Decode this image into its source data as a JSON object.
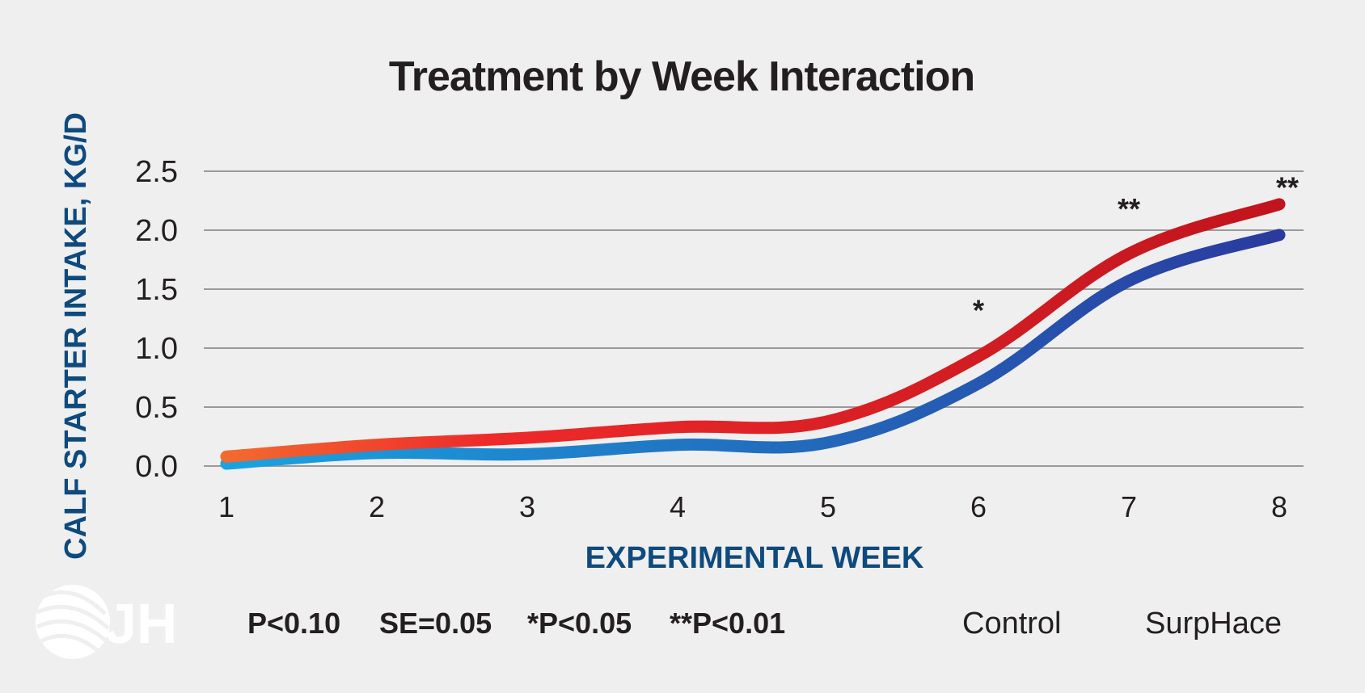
{
  "chart_data": {
    "type": "line",
    "title": "Treatment by Week Interaction",
    "xlabel": "EXPERIMENTAL WEEK",
    "ylabel": "CALF STARTER INTAKE, KG/D",
    "x": [
      1,
      2,
      3,
      4,
      5,
      6,
      7,
      8
    ],
    "x_tick_labels": [
      "1",
      "2",
      "3",
      "4",
      "5",
      "6",
      "7",
      "8"
    ],
    "y_tick_labels": [
      "0.0",
      "0.5",
      "1.0",
      "1.5",
      "2.0",
      "2.5"
    ],
    "y_ticks": [
      0,
      0.5,
      1.0,
      1.5,
      2.0,
      2.5
    ],
    "ylim": [
      0,
      2.5
    ],
    "grid": true,
    "series": [
      {
        "name": "Control",
        "values": [
          0.02,
          0.11,
          0.1,
          0.18,
          0.2,
          0.7,
          1.57,
          1.96
        ],
        "color_start": "#1aa3e0",
        "color_end": "#2a3a9e"
      },
      {
        "name": "SurpHace",
        "values": [
          0.08,
          0.18,
          0.24,
          0.33,
          0.38,
          0.93,
          1.8,
          2.22
        ],
        "color_start": "#f26a30",
        "color_end": "#c0141e"
      }
    ],
    "annotations": [
      {
        "x": 6,
        "y": 1.36,
        "text": "*"
      },
      {
        "x": 7,
        "y": 2.22,
        "text": "**"
      },
      {
        "x": 8,
        "y": 2.4,
        "text": "**"
      }
    ],
    "legend_position": "bottom-right"
  },
  "footnotes": [
    "P<0.10",
    "SE=0.05",
    "*P<0.05",
    "**P<0.01"
  ],
  "logo": {
    "text": "JH",
    "icon": "striped-globe-icon"
  }
}
